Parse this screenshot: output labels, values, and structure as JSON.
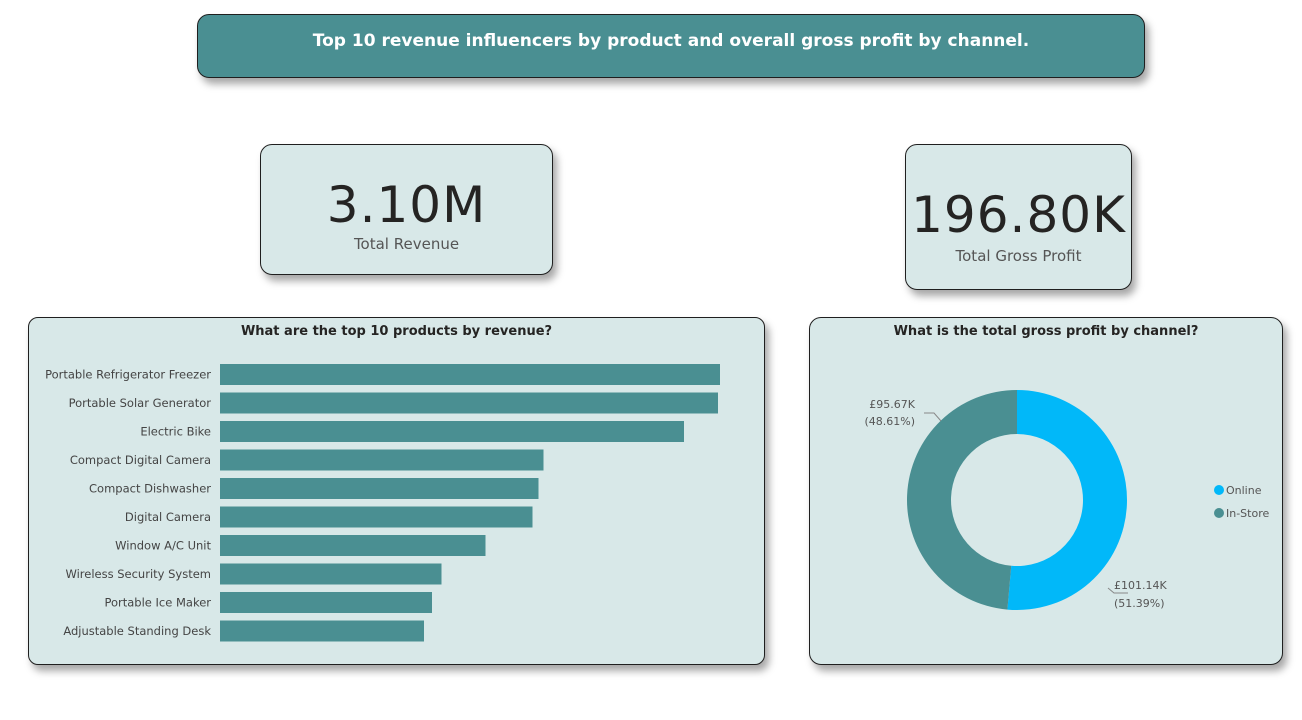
{
  "header": {
    "title": "Top 10 revenue influencers by product and overall gross profit by channel."
  },
  "kpis": {
    "revenue": {
      "value": "3.10M",
      "label": "Total Revenue"
    },
    "profit": {
      "value": "196.80K",
      "label": "Total Gross Profit"
    }
  },
  "colors": {
    "bar": "#4a8f92",
    "online": "#01b8f9",
    "instore": "#4a8f92",
    "card_bg": "#d8e8e8"
  },
  "chart_data": [
    {
      "type": "bar",
      "orientation": "horizontal",
      "title": "What are the top 10 products by revenue?",
      "categories": [
        "Portable Refrigerator Freezer",
        "Portable Solar Generator",
        "Electric Bike",
        "Compact Digital Camera",
        "Compact Dishwasher",
        "Digital Camera",
        "Window A/C Unit",
        "Wireless Security System",
        "Portable Ice Maker",
        "Adjustable Standing Desk"
      ],
      "values": [
        100,
        99.6,
        92.8,
        64.7,
        63.7,
        62.5,
        53.1,
        44.3,
        42.4,
        40.8
      ],
      "grid": false,
      "legend": "none"
    },
    {
      "type": "pie",
      "variant": "donut",
      "title": "What is the total gross profit by channel?",
      "categories": [
        "Online",
        "In-Store"
      ],
      "values": [
        101.14,
        95.67
      ],
      "data_labels": [
        {
          "amount": "£101.14K",
          "percent": "(51.39%)"
        },
        {
          "amount": "£95.67K",
          "percent": "(48.61%)"
        }
      ],
      "legend": "right"
    }
  ]
}
